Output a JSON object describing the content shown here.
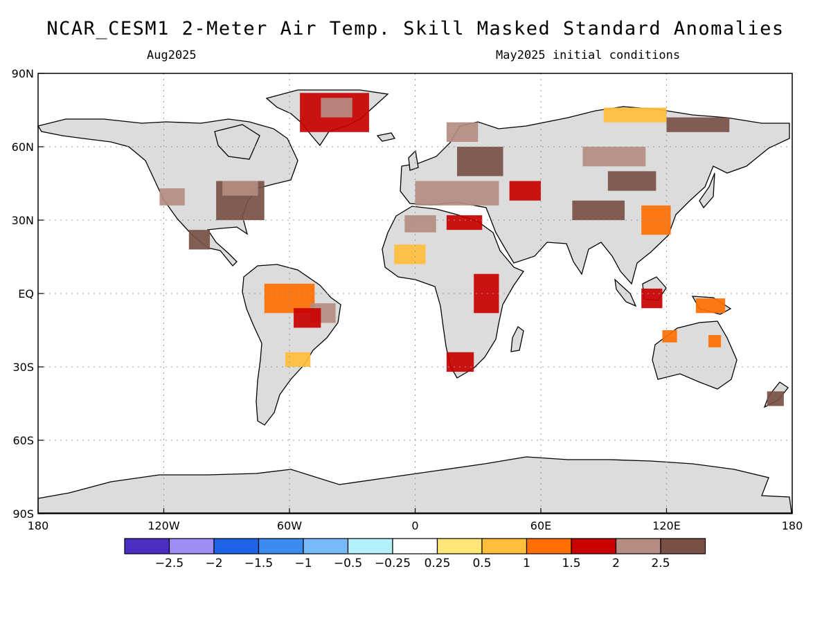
{
  "header": {
    "title": "NCAR_CESM1 2-Meter Air Temp. Skill Masked Standard Anomalies",
    "valid_month": "Aug2025",
    "init_conditions": "May2025 initial conditions"
  },
  "map": {
    "projection": "equirectangular",
    "lon_range": [
      -180,
      180
    ],
    "lat_range": [
      -90,
      90
    ],
    "gridlines": "dotted",
    "land_fill": "#dcdcdc",
    "ocean_fill": "#ffffff",
    "lon_ticks": [
      {
        "value": -180,
        "label": "180"
      },
      {
        "value": -120,
        "label": "120W"
      },
      {
        "value": -60,
        "label": "60W"
      },
      {
        "value": 0,
        "label": "0"
      },
      {
        "value": 60,
        "label": "60E"
      },
      {
        "value": 120,
        "label": "120E"
      },
      {
        "value": 180,
        "label": "180"
      }
    ],
    "lat_ticks": [
      {
        "value": 90,
        "label": "90N"
      },
      {
        "value": 60,
        "label": "60N"
      },
      {
        "value": 30,
        "label": "30N"
      },
      {
        "value": 0,
        "label": "EQ"
      },
      {
        "value": -30,
        "label": "30S"
      },
      {
        "value": -60,
        "label": "60S"
      },
      {
        "value": -90,
        "label": "90S"
      }
    ],
    "anomaly_regions": [
      {
        "name": "greenland",
        "lon": [
          -55,
          -22
        ],
        "lat": [
          66,
          82
        ],
        "level": 1.5
      },
      {
        "name": "greenland-core",
        "lon": [
          -45,
          -30
        ],
        "lat": [
          72,
          80
        ],
        "level": 2
      },
      {
        "name": "eastern-us",
        "lon": [
          -95,
          -72
        ],
        "lat": [
          30,
          46
        ],
        "level": 2.5
      },
      {
        "name": "great-lakes",
        "lon": [
          -92,
          -75
        ],
        "lat": [
          40,
          46
        ],
        "level": 2
      },
      {
        "name": "western-us",
        "lon": [
          -122,
          -110
        ],
        "lat": [
          36,
          43
        ],
        "level": 2
      },
      {
        "name": "mexico",
        "lon": [
          -108,
          -98
        ],
        "lat": [
          18,
          26
        ],
        "level": 2.5
      },
      {
        "name": "amazon",
        "lon": [
          -72,
          -48
        ],
        "lat": [
          -8,
          4
        ],
        "level": 1
      },
      {
        "name": "brazil-east",
        "lon": [
          -50,
          -38
        ],
        "lat": [
          -12,
          -4
        ],
        "level": 2
      },
      {
        "name": "brazil-core",
        "lon": [
          -58,
          -45
        ],
        "lat": [
          -14,
          -6
        ],
        "level": 1.5
      },
      {
        "name": "south-brazil",
        "lon": [
          -62,
          -50
        ],
        "lat": [
          -30,
          -24
        ],
        "level": 0.5
      },
      {
        "name": "sahara-west",
        "lon": [
          -5,
          10
        ],
        "lat": [
          25,
          32
        ],
        "level": 2
      },
      {
        "name": "sahara-south",
        "lon": [
          -10,
          5
        ],
        "lat": [
          12,
          20
        ],
        "level": 0.5
      },
      {
        "name": "libya-egypt",
        "lon": [
          15,
          32
        ],
        "lat": [
          26,
          32
        ],
        "level": 1.5
      },
      {
        "name": "east-africa",
        "lon": [
          28,
          40
        ],
        "lat": [
          -8,
          8
        ],
        "level": 1.5
      },
      {
        "name": "south-africa",
        "lon": [
          15,
          28
        ],
        "lat": [
          -32,
          -24
        ],
        "level": 1.5
      },
      {
        "name": "eastern-europe",
        "lon": [
          20,
          42
        ],
        "lat": [
          48,
          60
        ],
        "level": 2.5
      },
      {
        "name": "scandinavia",
        "lon": [
          15,
          30
        ],
        "lat": [
          62,
          70
        ],
        "level": 2
      },
      {
        "name": "mediterranean",
        "lon": [
          0,
          40
        ],
        "lat": [
          36,
          46
        ],
        "level": 2
      },
      {
        "name": "caspian",
        "lon": [
          45,
          60
        ],
        "lat": [
          38,
          46
        ],
        "level": 1.5
      },
      {
        "name": "central-siberia",
        "lon": [
          80,
          110
        ],
        "lat": [
          52,
          60
        ],
        "level": 2
      },
      {
        "name": "siberia-north",
        "lon": [
          90,
          120
        ],
        "lat": [
          70,
          76
        ],
        "level": 0.5
      },
      {
        "name": "northeast-asia",
        "lon": [
          120,
          150
        ],
        "lat": [
          66,
          72
        ],
        "level": 2.5
      },
      {
        "name": "tibet",
        "lon": [
          75,
          100
        ],
        "lat": [
          30,
          38
        ],
        "level": 2.5
      },
      {
        "name": "east-china",
        "lon": [
          108,
          122
        ],
        "lat": [
          24,
          36
        ],
        "level": 1
      },
      {
        "name": "mongolia",
        "lon": [
          92,
          115
        ],
        "lat": [
          42,
          50
        ],
        "level": 2.5
      },
      {
        "name": "indonesia",
        "lon": [
          108,
          118
        ],
        "lat": [
          -6,
          2
        ],
        "level": 1.5
      },
      {
        "name": "new-guinea",
        "lon": [
          134,
          148
        ],
        "lat": [
          -8,
          -2
        ],
        "level": 1
      },
      {
        "name": "australia-north",
        "lon": [
          118,
          125
        ],
        "lat": [
          -20,
          -15
        ],
        "level": 1
      },
      {
        "name": "australia-east",
        "lon": [
          140,
          146
        ],
        "lat": [
          -22,
          -17
        ],
        "level": 1
      },
      {
        "name": "new-zealand",
        "lon": [
          168,
          176
        ],
        "lat": [
          -46,
          -40
        ],
        "level": 2.5
      }
    ]
  },
  "colorbar": {
    "colors": [
      "#4b2fc0",
      "#a08cf5",
      "#1f64e6",
      "#3c8cf0",
      "#78b9fa",
      "#b4f0fa",
      "#ffffff",
      "#ffe678",
      "#ffbe3c",
      "#ff6e00",
      "#c80000",
      "#b48c82",
      "#785046"
    ],
    "labels": [
      "-2.5",
      "-2",
      "-1.5",
      "-1",
      "-0.5",
      "-0.25",
      "0.25",
      "0.5",
      "1",
      "1.5",
      "2",
      "2.5"
    ]
  }
}
